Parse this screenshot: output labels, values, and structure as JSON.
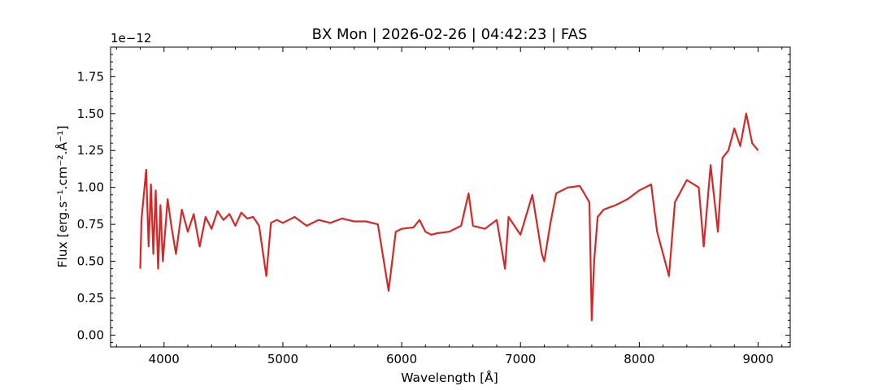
{
  "chart_data": {
    "type": "line",
    "title": "BX Mon | 2026-02-26 | 04:42:23 | FAS",
    "xlabel": "Wavelength [Å]",
    "ylabel": "Flux [erg.s⁻¹.cm⁻².Å⁻¹]",
    "y_offset_text": "1e−12",
    "xlim": [
      3550,
      9270
    ],
    "ylim": [
      -0.08,
      1.95
    ],
    "x_ticks": [
      4000,
      5000,
      6000,
      7000,
      8000,
      9000
    ],
    "x_tick_labels": [
      "4000",
      "5000",
      "6000",
      "7000",
      "8000",
      "9000"
    ],
    "y_ticks": [
      0.0,
      0.25,
      0.5,
      0.75,
      1.0,
      1.25,
      1.5,
      1.75
    ],
    "y_tick_labels": [
      "0.00",
      "0.25",
      "0.50",
      "0.75",
      "1.00",
      "1.25",
      "1.50",
      "1.75"
    ],
    "line_color": "#d62728",
    "grid": false,
    "series": [
      {
        "x": [
          3800,
          3810,
          3830,
          3850,
          3870,
          3890,
          3910,
          3930,
          3950,
          3970,
          3990,
          4030,
          4060,
          4100,
          4150,
          4200,
          4250,
          4300,
          4350,
          4400,
          4450,
          4500,
          4550,
          4600,
          4650,
          4700,
          4750,
          4800,
          4861,
          4900,
          4950,
          5000,
          5100,
          5200,
          5300,
          5400,
          5500,
          5600,
          5700,
          5800,
          5890,
          5950,
          6000,
          6100,
          6150,
          6200,
          6250,
          6300,
          6400,
          6500,
          6563,
          6600,
          6700,
          6800,
          6870,
          6900,
          7000,
          7100,
          7180,
          7200,
          7250,
          7300,
          7400,
          7500,
          7580,
          7600,
          7620,
          7650,
          7700,
          7800,
          7900,
          8000,
          8100,
          8150,
          8200,
          8250,
          8300,
          8400,
          8500,
          8542,
          8600,
          8662,
          8700,
          8750,
          8800,
          8850,
          8900,
          8950,
          9000
        ],
        "y": [
          0.45,
          0.78,
          0.95,
          1.12,
          0.6,
          1.02,
          0.55,
          0.98,
          0.45,
          0.88,
          0.5,
          0.92,
          0.75,
          0.55,
          0.85,
          0.7,
          0.82,
          0.6,
          0.8,
          0.72,
          0.84,
          0.78,
          0.82,
          0.74,
          0.83,
          0.79,
          0.8,
          0.74,
          0.4,
          0.76,
          0.78,
          0.76,
          0.8,
          0.74,
          0.78,
          0.76,
          0.79,
          0.77,
          0.77,
          0.75,
          0.3,
          0.7,
          0.72,
          0.73,
          0.78,
          0.7,
          0.68,
          0.69,
          0.7,
          0.74,
          0.96,
          0.74,
          0.72,
          0.78,
          0.45,
          0.8,
          0.68,
          0.95,
          0.55,
          0.5,
          0.75,
          0.96,
          1.0,
          1.01,
          0.9,
          0.1,
          0.5,
          0.8,
          0.85,
          0.88,
          0.92,
          0.98,
          1.02,
          0.7,
          0.55,
          0.4,
          0.9,
          1.05,
          1.0,
          0.6,
          1.15,
          0.7,
          1.2,
          1.25,
          1.4,
          1.28,
          1.5,
          1.3,
          1.25
        ]
      }
    ]
  }
}
